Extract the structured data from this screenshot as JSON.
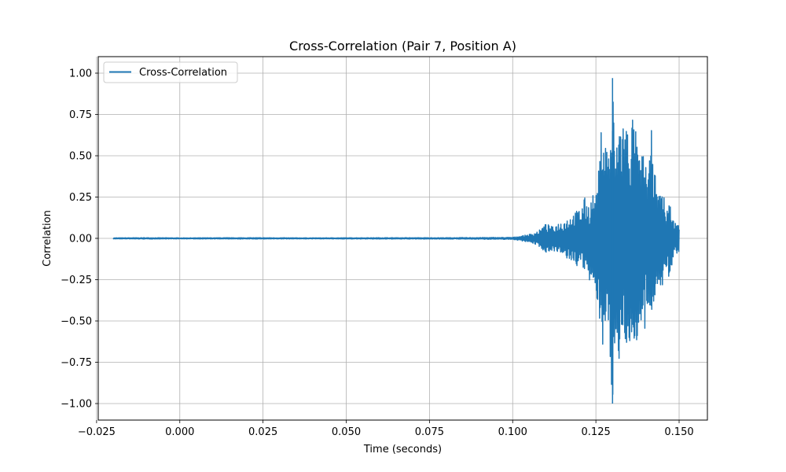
{
  "chart_data": {
    "type": "line",
    "title": "Cross-Correlation (Pair 7, Position A)",
    "xlabel": "Time (seconds)",
    "ylabel": "Correlation",
    "xlim": [
      -0.0245,
      0.1585
    ],
    "ylim": [
      -1.1,
      1.1
    ],
    "xticks": [
      -0.025,
      0.0,
      0.025,
      0.05,
      0.075,
      0.1,
      0.125,
      0.15
    ],
    "xtick_labels": [
      "−0.025",
      "0.000",
      "0.025",
      "0.050",
      "0.075",
      "0.100",
      "0.125",
      "0.150"
    ],
    "yticks": [
      1.0,
      0.75,
      0.5,
      0.25,
      0.0,
      -0.25,
      -0.5,
      -0.75,
      -1.0
    ],
    "ytick_labels": [
      "1.00",
      "0.75",
      "0.50",
      "0.25",
      "0.00",
      "−0.25",
      "−0.50",
      "−0.75",
      "−1.00"
    ],
    "grid": true,
    "legend_position": "top-left",
    "series": [
      {
        "name": "Cross-Correlation",
        "color": "#1f77b4",
        "x": [
          -0.02,
          -0.01,
          0.0,
          0.02,
          0.04,
          0.06,
          0.08,
          0.1,
          0.104,
          0.106,
          0.108,
          0.11,
          0.112,
          0.114,
          0.116,
          0.118,
          0.12,
          0.122,
          0.123,
          0.124,
          0.125,
          0.126,
          0.127,
          0.128,
          0.129,
          0.13,
          0.131,
          0.132,
          0.133,
          0.134,
          0.135,
          0.136,
          0.137,
          0.138,
          0.139,
          0.14,
          0.141,
          0.142,
          0.143,
          0.144,
          0.145,
          0.146,
          0.147,
          0.148,
          0.149,
          0.15
        ],
        "y_max": [
          0.003,
          0.004,
          0.003,
          0.004,
          0.003,
          0.004,
          0.004,
          0.006,
          0.02,
          0.03,
          0.05,
          0.09,
          0.07,
          0.1,
          0.12,
          0.15,
          0.18,
          0.26,
          0.2,
          0.28,
          0.25,
          0.45,
          0.82,
          0.6,
          0.55,
          0.97,
          0.48,
          0.8,
          0.78,
          0.72,
          0.7,
          0.77,
          0.65,
          0.5,
          0.52,
          0.47,
          0.43,
          0.76,
          0.3,
          0.26,
          0.33,
          0.16,
          0.25,
          0.12,
          0.1,
          0.08
        ],
        "y_min": [
          -0.003,
          -0.004,
          -0.003,
          -0.004,
          -0.003,
          -0.004,
          -0.004,
          -0.006,
          -0.02,
          -0.03,
          -0.05,
          -0.09,
          -0.07,
          -0.1,
          -0.12,
          -0.15,
          -0.18,
          -0.2,
          -0.3,
          -0.25,
          -0.33,
          -0.45,
          -0.8,
          -0.5,
          -0.7,
          -1.0,
          -0.55,
          -0.82,
          -0.6,
          -0.65,
          -0.68,
          -0.66,
          -0.62,
          -0.66,
          -0.62,
          -0.58,
          -0.5,
          -0.47,
          -0.3,
          -0.28,
          -0.33,
          -0.2,
          -0.25,
          -0.15,
          -0.1,
          -0.08
        ]
      }
    ]
  }
}
